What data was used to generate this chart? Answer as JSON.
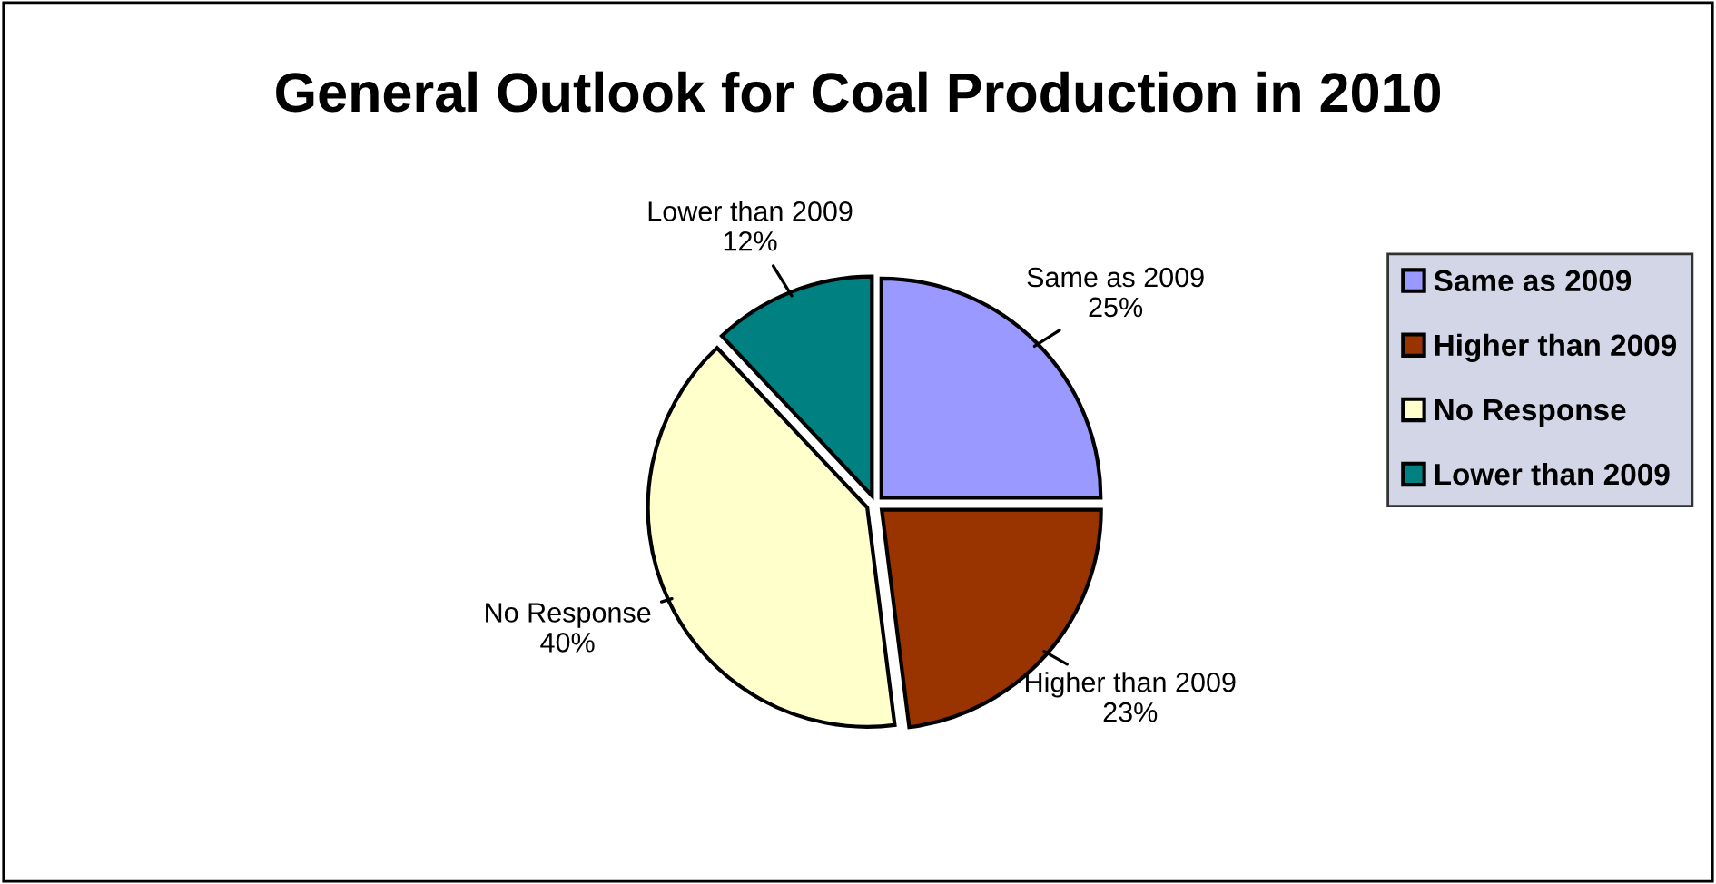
{
  "chart_data": {
    "type": "pie",
    "title": "General Outlook for Coal Production in 2010",
    "categories": [
      "Same as 2009",
      "Higher than 2009",
      "No Response",
      "Lower than 2009"
    ],
    "values": [
      25,
      23,
      40,
      12
    ],
    "value_labels": [
      "25%",
      "23%",
      "40%",
      "12%"
    ],
    "colors": [
      "#9999ff",
      "#993300",
      "#ffffcc",
      "#008080"
    ],
    "legend": "right"
  }
}
